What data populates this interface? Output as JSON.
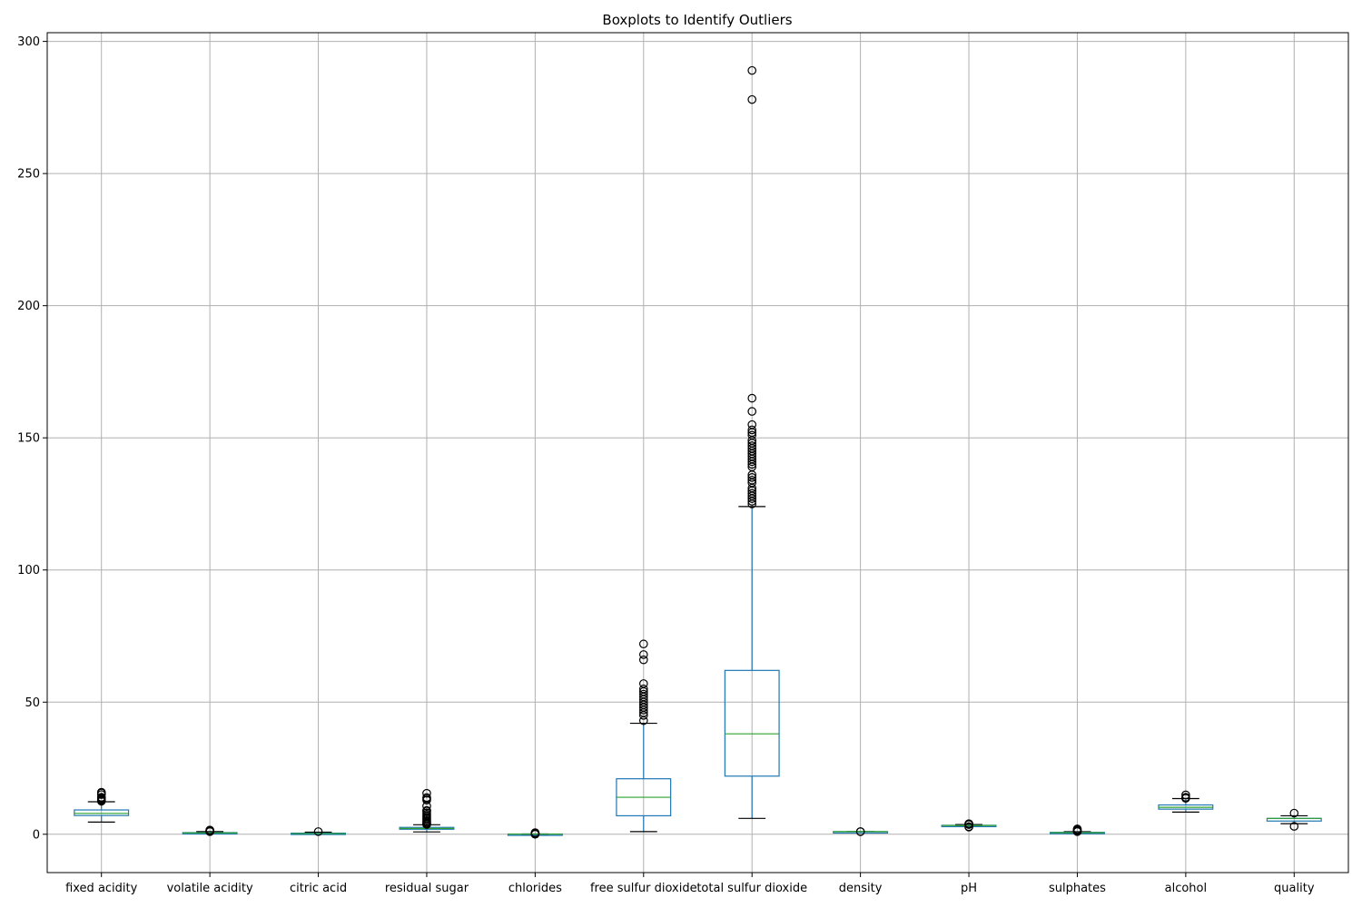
{
  "chart_data": {
    "type": "box",
    "title": "Boxplots to Identify Outliers",
    "xlabel": "",
    "ylabel": "",
    "ylim": [
      -14.5,
      303.3
    ],
    "yticks": [
      0,
      50,
      100,
      150,
      200,
      250,
      300
    ],
    "grid": true,
    "categories": [
      "fixed acidity",
      "volatile acidity",
      "citric acid",
      "residual sugar",
      "chlorides",
      "free sulfur dioxide",
      "total sulfur dioxide",
      "density",
      "pH",
      "sulphates",
      "alcohol",
      "quality"
    ],
    "boxes": [
      {
        "whislo": 4.6,
        "q1": 7.1,
        "med": 7.9,
        "q3": 9.2,
        "whishi": 12.3,
        "fliers": [
          12.5,
          12.8,
          13.0,
          13.3,
          13.7,
          14.0,
          15.0,
          15.6,
          15.9
        ]
      },
      {
        "whislo": 0.12,
        "q1": 0.39,
        "med": 0.52,
        "q3": 0.64,
        "whishi": 1.01,
        "fliers": [
          1.02,
          1.07,
          1.13,
          1.18,
          1.24,
          1.33,
          1.58
        ]
      },
      {
        "whislo": 0.0,
        "q1": 0.09,
        "med": 0.26,
        "q3": 0.42,
        "whishi": 0.79,
        "fliers": [
          1.0
        ]
      },
      {
        "whislo": 0.9,
        "q1": 1.9,
        "med": 2.2,
        "q3": 2.6,
        "whishi": 3.6,
        "fliers": [
          3.7,
          3.9,
          4.2,
          4.5,
          5.0,
          5.5,
          6.0,
          6.5,
          7.0,
          7.5,
          8.1,
          8.8,
          9.0,
          10.7,
          12.9,
          13.4,
          13.9,
          15.5
        ]
      },
      {
        "whislo": 0.04,
        "q1": 0.07,
        "med": 0.079,
        "q3": 0.09,
        "whishi": 0.12,
        "fliers": [
          0.012,
          0.034,
          0.15,
          0.2,
          0.3,
          0.4,
          0.5,
          0.61
        ]
      },
      {
        "whislo": 1,
        "q1": 7,
        "med": 14,
        "q3": 21,
        "whishi": 42,
        "fliers": [
          43,
          45,
          46,
          47,
          48,
          49,
          50,
          51,
          52,
          53,
          54,
          55,
          57,
          66,
          68,
          72
        ]
      },
      {
        "whislo": 6,
        "q1": 22,
        "med": 38,
        "q3": 62,
        "whishi": 124,
        "fliers": [
          125,
          126,
          127,
          128,
          129,
          130,
          131,
          133,
          134,
          135,
          136,
          139,
          140,
          141,
          142,
          143,
          144,
          145,
          146,
          147,
          148,
          149,
          151,
          152,
          153,
          155,
          160,
          165,
          278,
          289
        ]
      },
      {
        "whislo": 0.992,
        "q1": 0.9956,
        "med": 0.9968,
        "q3": 0.9978,
        "whishi": 1.001,
        "fliers": [
          0.99,
          1.003
        ]
      },
      {
        "whislo": 2.92,
        "q1": 3.21,
        "med": 3.31,
        "q3": 3.4,
        "whishi": 3.68,
        "fliers": [
          2.74,
          2.86,
          3.69,
          3.78,
          3.9,
          4.01
        ]
      },
      {
        "whislo": 0.33,
        "q1": 0.55,
        "med": 0.62,
        "q3": 0.73,
        "whishi": 0.98,
        "fliers": [
          1.0,
          1.1,
          1.2,
          1.36,
          1.6,
          1.98,
          2.0
        ]
      },
      {
        "whislo": 8.4,
        "q1": 9.5,
        "med": 10.2,
        "q3": 11.1,
        "whishi": 13.5,
        "fliers": [
          13.6,
          14.0,
          14.9
        ]
      },
      {
        "whislo": 4,
        "q1": 5,
        "med": 6,
        "q3": 6,
        "whishi": 7,
        "fliers": [
          3,
          8
        ]
      }
    ]
  }
}
